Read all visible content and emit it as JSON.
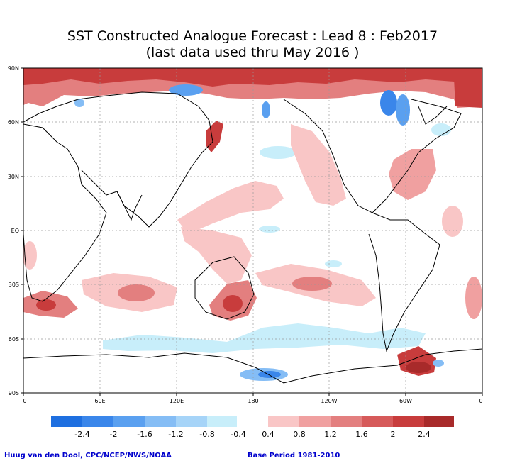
{
  "title_line1": "SST Constructed Analogue Forecast : Lead 8 : Feb2017",
  "title_line2": "(last data used thru May 2016 )",
  "map": {
    "lat_labels": [
      "90N",
      "60N",
      "30N",
      "EQ",
      "30S",
      "60S",
      "90S"
    ],
    "lon_labels": [
      "0",
      "60E",
      "120E",
      "180",
      "120W",
      "60W",
      "0"
    ]
  },
  "colorbar": {
    "negative_colors": [
      "#1e6fe0",
      "#3a86ea",
      "#5aa0f0",
      "#85bdf5",
      "#a6d4f8",
      "#c8eefa"
    ],
    "positive_colors": [
      "#f9c6c6",
      "#f0a0a0",
      "#e37f7f",
      "#d65a5a",
      "#c83c3c",
      "#a82a2a"
    ],
    "labels": [
      "-2.4",
      "-2",
      "-1.6",
      "-1.2",
      "-0.8",
      "-0.4",
      "0.4",
      "0.8",
      "1.2",
      "1.6",
      "2",
      "2.4"
    ]
  },
  "footer": {
    "credit": "Huug van den Dool, CPC/NCEP/NWS/NOAA",
    "base_period": "Base Period 1981-2010"
  }
}
